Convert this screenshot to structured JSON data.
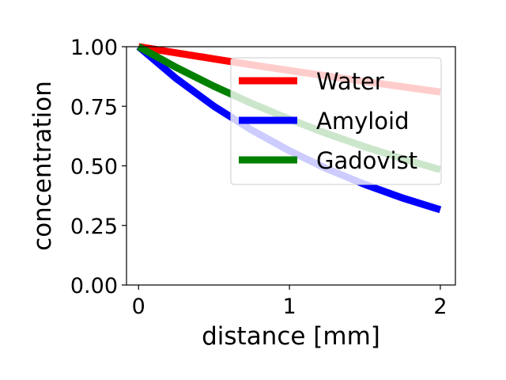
{
  "chart_data": {
    "type": "line",
    "xlabel": "distance [mm]",
    "ylabel": "concentration",
    "xlim": [
      -0.08,
      2.1
    ],
    "ylim": [
      0.0,
      1.0
    ],
    "xticks": [
      0,
      1,
      2
    ],
    "xtick_labels": [
      "0",
      "1",
      "2"
    ],
    "yticks": [
      0.0,
      0.25,
      0.5,
      0.75,
      1.0
    ],
    "ytick_labels": [
      "0.00",
      "0.25",
      "0.50",
      "0.75",
      "1.00"
    ],
    "grid": false,
    "legend_position": "top-right",
    "x": [
      0,
      0.25,
      0.5,
      0.75,
      1.0,
      1.25,
      1.5,
      1.75,
      2.0
    ],
    "series": [
      {
        "name": "Water",
        "color": "#ff0000",
        "values": [
          1.0,
          0.974,
          0.949,
          0.924,
          0.9,
          0.877,
          0.854,
          0.832,
          0.81
        ]
      },
      {
        "name": "Amyloid",
        "color": "#0000ff",
        "values": [
          1.0,
          0.866,
          0.75,
          0.65,
          0.563,
          0.487,
          0.422,
          0.365,
          0.316
        ]
      },
      {
        "name": "Gadovist",
        "color": "#008000",
        "values": [
          1.0,
          0.913,
          0.834,
          0.762,
          0.696,
          0.635,
          0.58,
          0.53,
          0.484
        ]
      }
    ]
  }
}
